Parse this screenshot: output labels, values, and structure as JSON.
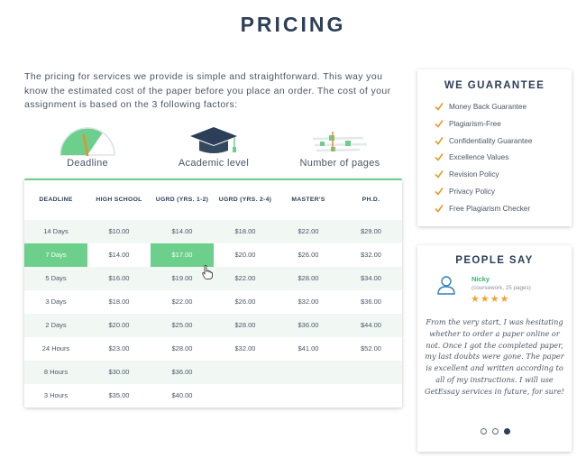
{
  "page": {
    "title": "PRICING",
    "intro": "The pricing for services we provide is simple and straightforward. This way you know the estimated cost of the paper before you place an order. The cost of your assignment is based on the 3 following factors:"
  },
  "factors": [
    {
      "label": "Deadline",
      "icon": "gauge-icon"
    },
    {
      "label": "Academic level",
      "icon": "graduation-cap-icon"
    },
    {
      "label": "Number of pages",
      "icon": "pages-slider-icon"
    }
  ],
  "pricing_table": {
    "headers": [
      "DEADLINE",
      "HIGH SCHOOL",
      "UGRD (YRS. 1-2)",
      "UGRD (YRS. 2-4)",
      "MASTER'S",
      "PH.D."
    ],
    "rows": [
      [
        "14 Days",
        "$10.00",
        "$14.00",
        "$18.00",
        "$22.00",
        "$29.00"
      ],
      [
        "7 Days",
        "$14.00",
        "$17.00",
        "$20.00",
        "$26.00",
        "$32.00"
      ],
      [
        "5 Days",
        "$16.00",
        "$19.00",
        "$22.00",
        "$28.00",
        "$34.00"
      ],
      [
        "3 Days",
        "$18.00",
        "$22.00",
        "$26.00",
        "$32.00",
        "$36.00"
      ],
      [
        "2 Days",
        "$20.00",
        "$25.00",
        "$28.00",
        "$36.00",
        "$44.00"
      ],
      [
        "24 Hours",
        "$23.00",
        "$28.00",
        "$32.00",
        "$41.00",
        "$52.00"
      ],
      [
        "8 Hours",
        "$30.00",
        "$36.00",
        "",
        "",
        ""
      ],
      [
        "3 Hours",
        "$35.00",
        "$40.00",
        "",
        "",
        ""
      ]
    ],
    "selected_deadline": "7 Days",
    "selected_level": "UGRD (YRS. 1-2)"
  },
  "guarantee": {
    "title": "WE GUARANTEE",
    "items": [
      "Money Back Guarantee",
      "Plagiarism-Free",
      "Confidentiality Guarantee",
      "Excellence Values",
      "Revision Policy",
      "Privacy Policy",
      "Free Plagiarism Checker"
    ]
  },
  "people_say": {
    "title": "PEOPLE SAY",
    "reviewer": {
      "name": "Nicky",
      "meta": "(coursework, 25 pages)",
      "stars": 4
    },
    "review": "From the very start, I was hesitating whether to order a paper online or not. Once I got the completed paper, my last doubts were gone. The paper is excellent and written according to all of my instructions. I will use GetEssay services in future, for sure!",
    "slides": 3,
    "active_slide": 3
  },
  "colors": {
    "accent": "#6ccf8c",
    "navy": "#2c3e58",
    "star": "#f0a430",
    "check": "#e89a2c"
  }
}
